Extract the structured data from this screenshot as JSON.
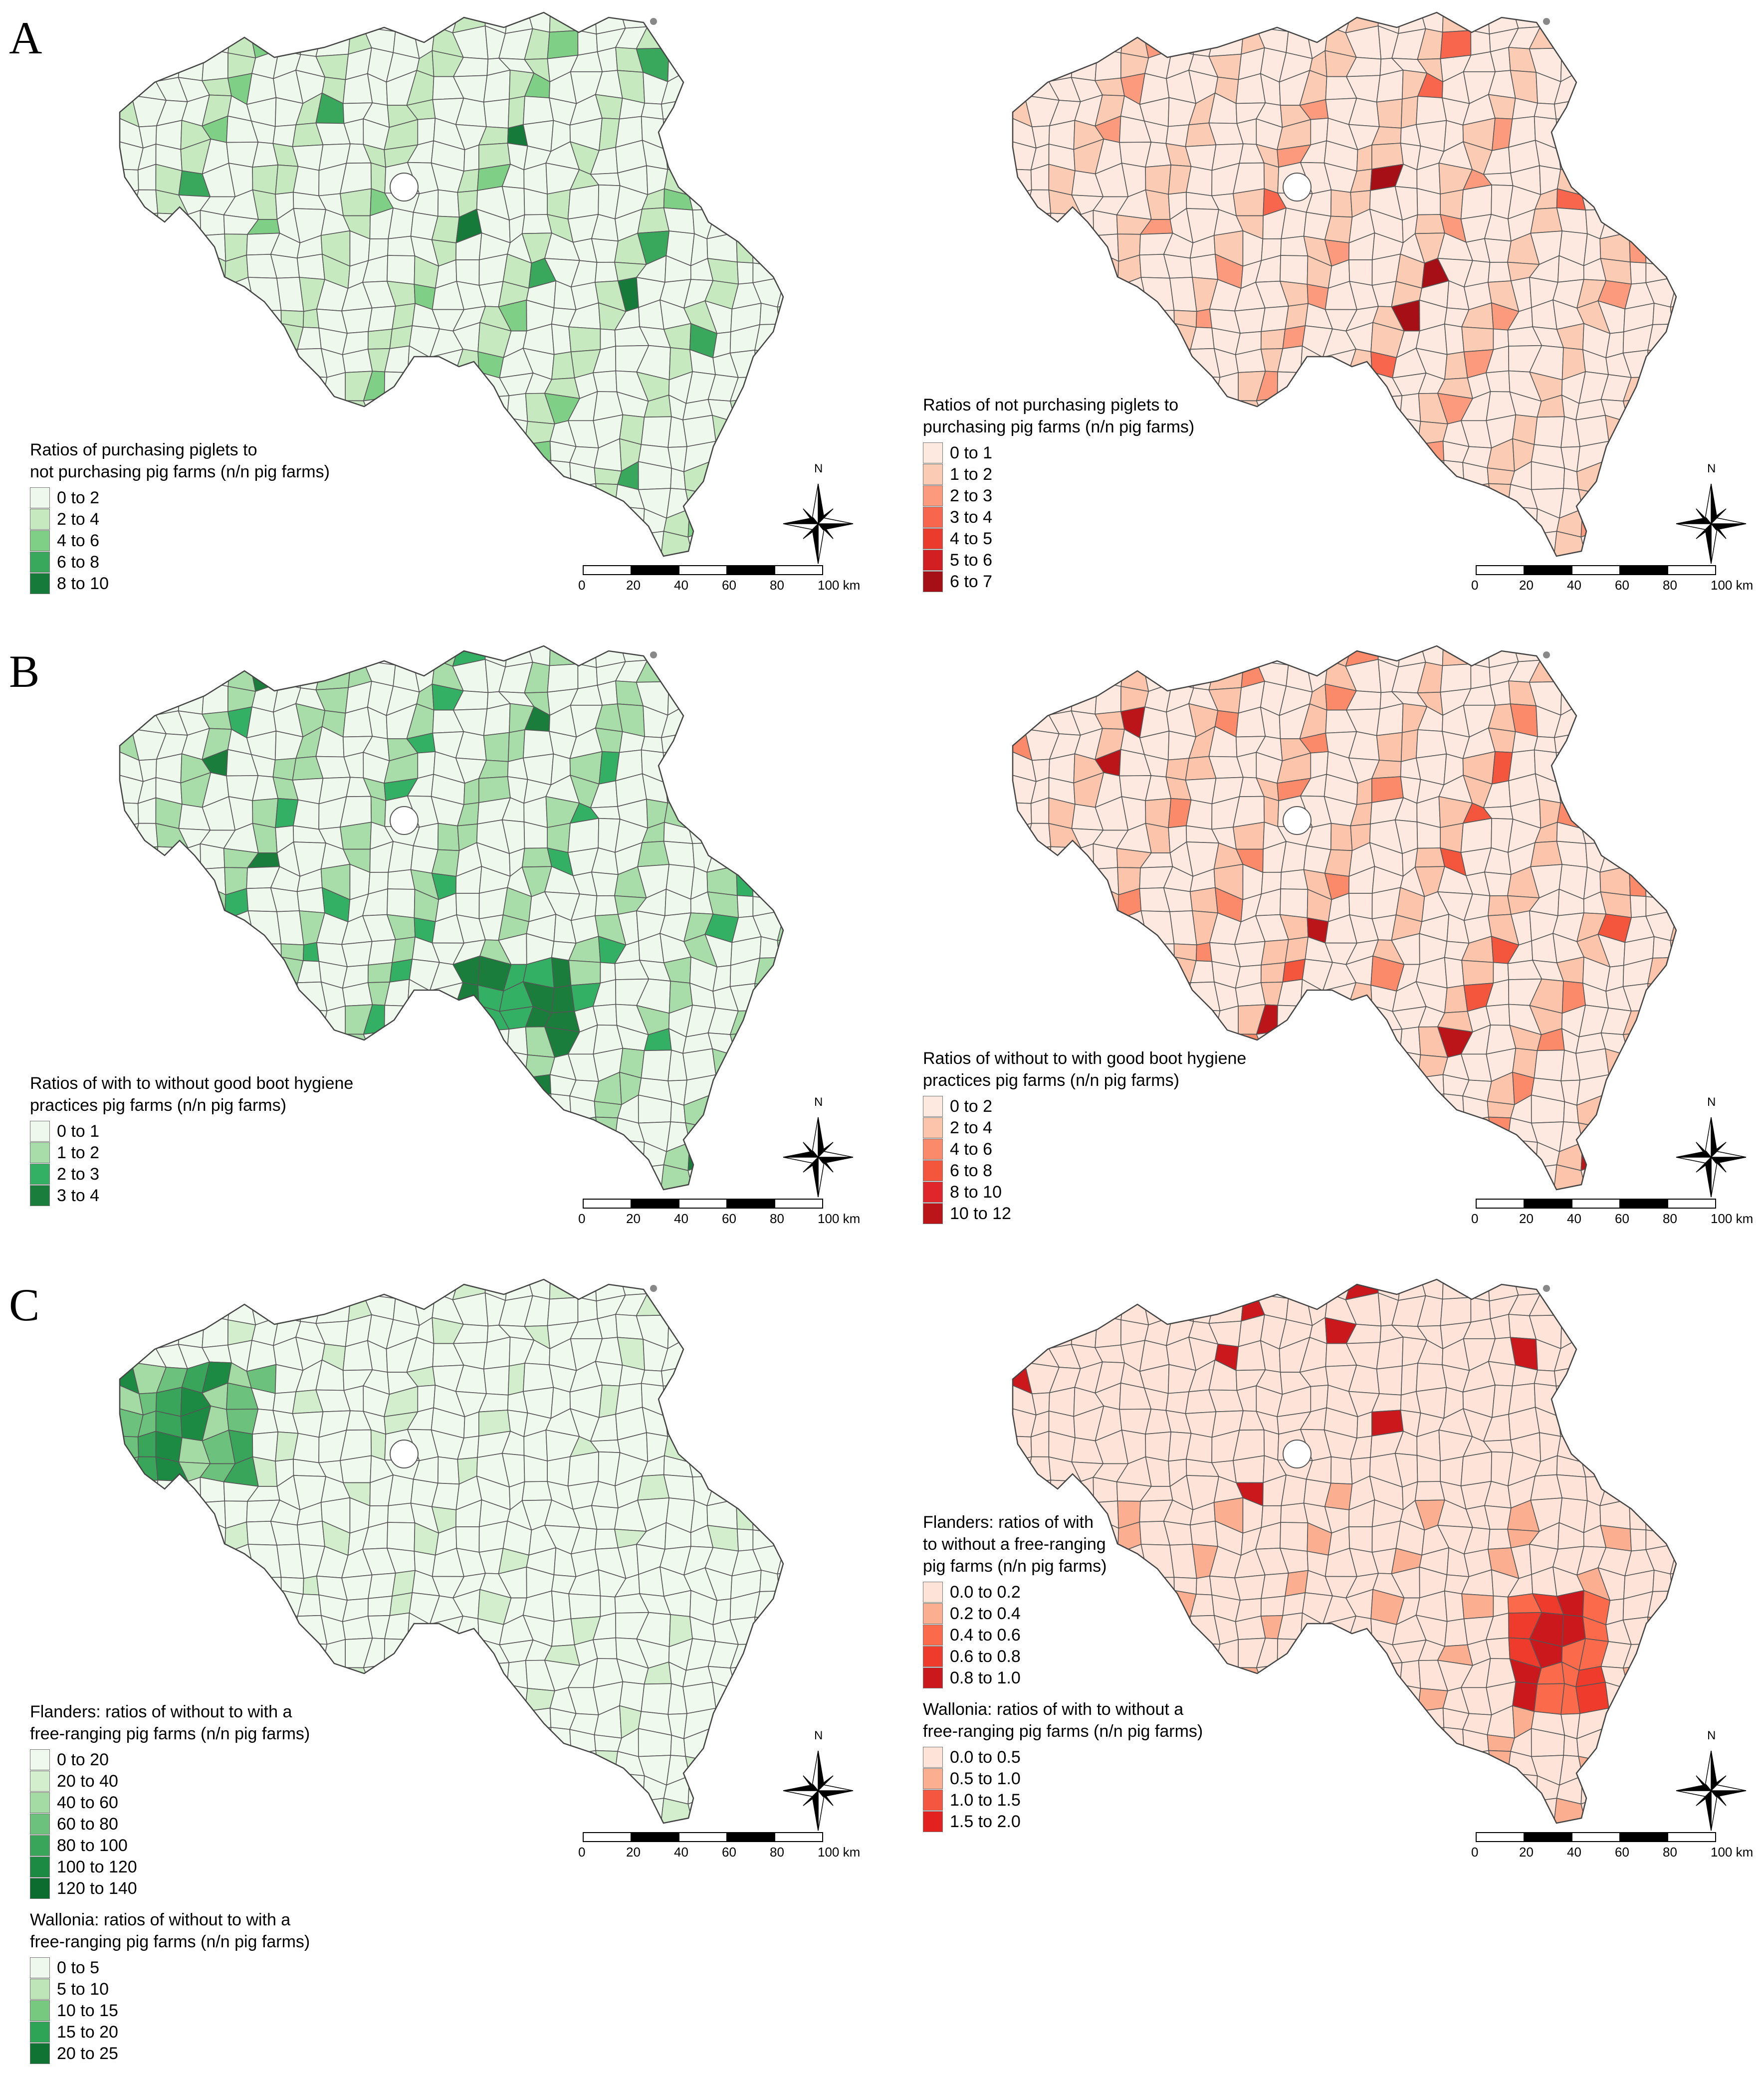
{
  "panels": [
    {
      "letter": "A",
      "left": {
        "scheme": "green",
        "legend_title": "Ratios of purchasing piglets to\nnot purchasing pig farms (n/n pig farms)",
        "sections": [
          {
            "title": "",
            "classes": [
              {
                "label": "0 to 2",
                "color": "#eef8ec"
              },
              {
                "label": "2 to 4",
                "color": "#c6e9c0"
              },
              {
                "label": "4 to 6",
                "color": "#7fcf86"
              },
              {
                "label": "6 to 8",
                "color": "#3aa85c"
              },
              {
                "label": "8 to 10",
                "color": "#157a3a"
              }
            ]
          }
        ]
      },
      "right": {
        "scheme": "red",
        "sections": [
          {
            "title": "Ratios of not purchasing piglets to\npurchasing pig farms (n/n pig farms)",
            "classes": [
              {
                "label": "0 to 1",
                "color": "#fde9df"
              },
              {
                "label": "1 to 2",
                "color": "#fccbb4"
              },
              {
                "label": "2 to 3",
                "color": "#fb9a7c"
              },
              {
                "label": "3 to 4",
                "color": "#f7664d"
              },
              {
                "label": "4 to 5",
                "color": "#ea3b2c"
              },
              {
                "label": "5 to 6",
                "color": "#d21f22"
              },
              {
                "label": "6 to 7",
                "color": "#a50f15"
              }
            ]
          }
        ]
      }
    },
    {
      "letter": "B",
      "left": {
        "scheme": "green",
        "sections": [
          {
            "title": "Ratios of with to without good boot hygiene\npractices pig farms (n/n pig farms)",
            "classes": [
              {
                "label": "0 to 1",
                "color": "#eef8ec"
              },
              {
                "label": "1 to 2",
                "color": "#a8dca8"
              },
              {
                "label": "2 to 3",
                "color": "#34b064"
              },
              {
                "label": "3 to 4",
                "color": "#1a7d3c"
              }
            ]
          }
        ]
      },
      "right": {
        "scheme": "red",
        "sections": [
          {
            "title": "Ratios of without to with good boot hygiene\npractices pig farms (n/n pig farms)",
            "classes": [
              {
                "label": "0 to 2",
                "color": "#fde9df"
              },
              {
                "label": "2 to 4",
                "color": "#fcc5ab"
              },
              {
                "label": "4 to 6",
                "color": "#fb8a6a"
              },
              {
                "label": "6 to 8",
                "color": "#f4553d"
              },
              {
                "label": "8 to 10",
                "color": "#e0262a"
              },
              {
                "label": "10 to 12",
                "color": "#bb1419"
              }
            ]
          }
        ]
      }
    },
    {
      "letter": "C",
      "left": {
        "scheme": "green",
        "sections": [
          {
            "title": "Flanders: ratios of without to with a\nfree-ranging pig farms (n/n pig farms)",
            "classes": [
              {
                "label": "0 to 20",
                "color": "#f0f9ee"
              },
              {
                "label": "20 to 40",
                "color": "#d2eecd"
              },
              {
                "label": "40 to 60",
                "color": "#a4dba4"
              },
              {
                "label": "60 to 80",
                "color": "#6cc27c"
              },
              {
                "label": "80 to 100",
                "color": "#39a55a"
              },
              {
                "label": "100 to 120",
                "color": "#1d8a43"
              },
              {
                "label": "120 to 140",
                "color": "#0c6b2e"
              }
            ]
          },
          {
            "title": "Wallonia: ratios of without to with a\nfree-ranging pig farms (n/n pig farms)",
            "classes": [
              {
                "label": "0 to 5",
                "color": "#eef8ec"
              },
              {
                "label": "5 to 10",
                "color": "#bde5b8"
              },
              {
                "label": "10 to 15",
                "color": "#76c97f"
              },
              {
                "label": "15 to 20",
                "color": "#2ea456"
              },
              {
                "label": "20 to 25",
                "color": "#117333"
              }
            ]
          }
        ]
      },
      "right": {
        "scheme": "red",
        "sections": [
          {
            "title": "Flanders: ratios of with\nto without a free-ranging\npig farms (n/n pig farms)",
            "classes": [
              {
                "label": "0.0 to 0.2",
                "color": "#fde3d8"
              },
              {
                "label": "0.2 to 0.4",
                "color": "#fcae91"
              },
              {
                "label": "0.4 to 0.6",
                "color": "#fb6a4a"
              },
              {
                "label": "0.6 to 0.8",
                "color": "#ef3b2c"
              },
              {
                "label": "0.8 to 1.0",
                "color": "#cb181d"
              }
            ]
          },
          {
            "title": "Wallonia: ratios of with to without a\nfree-ranging pig farms (n/n pig farms)",
            "classes": [
              {
                "label": "0.0 to 0.5",
                "color": "#fde3d8"
              },
              {
                "label": "0.5 to 1.0",
                "color": "#fcae91"
              },
              {
                "label": "1.0 to 1.5",
                "color": "#f5563f"
              },
              {
                "label": "1.5 to 2.0",
                "color": "#e3211e"
              }
            ]
          }
        ]
      }
    }
  ],
  "scalebar": {
    "ticks": [
      "0",
      "20",
      "40",
      "60",
      "80",
      "100 km"
    ]
  },
  "compass": {
    "north_label": "N"
  }
}
